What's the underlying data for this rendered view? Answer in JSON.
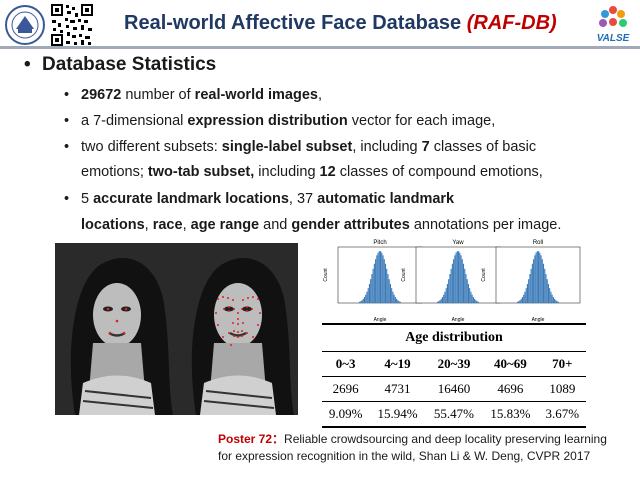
{
  "header": {
    "title_main": "Real-world Affective Face Database ",
    "title_highlight": "(RAF-DB)",
    "right_logo_text": "VALSE"
  },
  "section_heading": "Database Statistics",
  "bullets": [
    {
      "parts": [
        {
          "b": "29672"
        },
        {
          "t": " number of "
        },
        {
          "b": "real-world images"
        },
        {
          "t": ","
        }
      ]
    },
    {
      "parts": [
        {
          "t": "a 7-dimensional "
        },
        {
          "b": "expression distribution"
        },
        {
          "t": " vector for each image,"
        }
      ]
    },
    {
      "parts": [
        {
          "t": "two different subsets: "
        },
        {
          "b": "single-label subset"
        },
        {
          "t": ", including "
        },
        {
          "b": "7"
        },
        {
          "t": " classes of basic"
        }
      ]
    },
    {
      "parts": [
        {
          "t": "emotions; "
        },
        {
          "b": "two-tab subset,"
        },
        {
          "t": " including "
        },
        {
          "b": "12"
        },
        {
          "t": " classes of compound emotions,"
        }
      ]
    },
    {
      "parts": [
        {
          "t": "5 "
        },
        {
          "b": "accurate landmark locations"
        },
        {
          "t": ", 37 "
        },
        {
          "b": "automatic landmark"
        }
      ]
    },
    {
      "parts": [
        {
          "b": "locations"
        },
        {
          "t": ", "
        },
        {
          "b": "race"
        },
        {
          "t": ", "
        },
        {
          "b": "age range"
        },
        {
          "t": " and "
        },
        {
          "b": "gender attributes"
        },
        {
          "t": " annotations per image."
        }
      ]
    }
  ],
  "histograms": [
    {
      "title": "Pitch",
      "xlabel": "Angle",
      "ylabel": "Count"
    },
    {
      "title": "Yaw",
      "xlabel": "Angle",
      "ylabel": "Count"
    },
    {
      "title": "Roll",
      "xlabel": "Angle",
      "ylabel": "Count"
    }
  ],
  "age_table": {
    "caption": "Age distribution",
    "headers": [
      "0~3",
      "4~19",
      "20~39",
      "40~69",
      "70+"
    ],
    "counts": [
      "2696",
      "4731",
      "16460",
      "4696",
      "1089"
    ],
    "percents": [
      "9.09%",
      "15.94%",
      "55.47%",
      "15.83%",
      "3.67%"
    ]
  },
  "poster": {
    "label": "Poster 72：",
    "line1": "Reliable crowdsourcing and deep locality preserving learning",
    "line2": "for expression recognition in the wild, Shan Li & W. Deng, CVPR 2017"
  }
}
